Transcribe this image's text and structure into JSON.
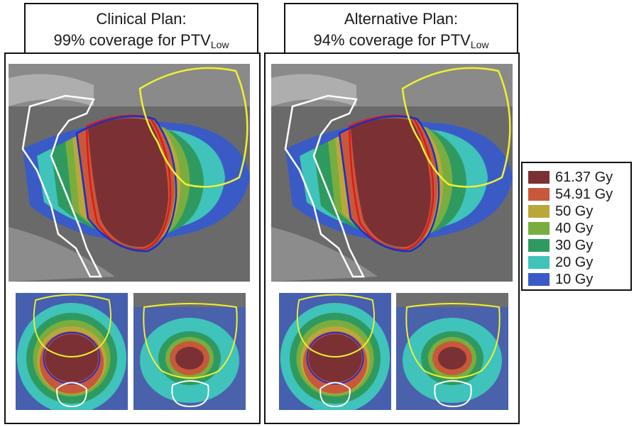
{
  "plans": [
    {
      "title_line1": "Clinical Plan:",
      "title_line2": "99% coverage for PTV",
      "title_sub": "Low"
    },
    {
      "title_line1": "Alternative Plan:",
      "title_line2": "94% coverage for PTV",
      "title_sub": "Low"
    }
  ],
  "legend": [
    {
      "label": "61.37 Gy",
      "color": "#7b3134"
    },
    {
      "label": "54.91 Gy",
      "color": "#c8583a"
    },
    {
      "label": "50 Gy",
      "color": "#b9a73a"
    },
    {
      "label": "40 Gy",
      "color": "#79ad3f"
    },
    {
      "label": "30 Gy",
      "color": "#2f9a5f"
    },
    {
      "label": "20 Gy",
      "color": "#3fc3bb"
    },
    {
      "label": "10 Gy",
      "color": "#3a5bc6"
    }
  ],
  "contour_colors": {
    "target_outline": "#e01818",
    "ptv_outline": "#1a2fc9",
    "bladder_outline": "#f0f030",
    "rectum_outline": "#ffffff"
  }
}
